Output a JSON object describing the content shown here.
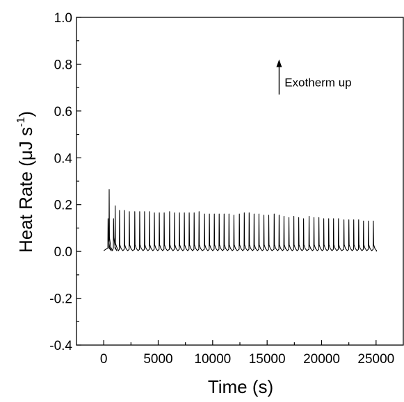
{
  "chart_data": {
    "type": "line",
    "title": "",
    "xlabel": "Time (s)",
    "ylabel_main": "Heat Rate (μJ s",
    "ylabel_sup": "-1",
    "ylabel_close": ")",
    "xlim": [
      -2500,
      27500
    ],
    "ylim": [
      -0.4,
      1.0
    ],
    "x_ticks": [
      0,
      5000,
      10000,
      15000,
      20000,
      25000
    ],
    "x_tick_labels": [
      "0",
      "5000",
      "10000",
      "15000",
      "20000",
      "25000"
    ],
    "y_ticks": [
      -0.4,
      -0.2,
      0.0,
      0.2,
      0.4,
      0.6,
      0.8,
      1.0
    ],
    "y_tick_labels": [
      "-0.4",
      "-0.2",
      "0.0",
      "0.2",
      "0.4",
      "0.6",
      "0.8",
      "1.0"
    ],
    "grid": false,
    "legend": "none",
    "line_color": "#000000",
    "series": [
      {
        "baseline": {
          "start": 0,
          "end": 25000,
          "value": 0.003
        },
        "spikes": [
          {
            "x": 400,
            "y": 0.14
          },
          {
            "x": 500,
            "y": 0.265
          },
          {
            "x": 900,
            "y": 0.14
          },
          {
            "x": 1050,
            "y": 0.195
          },
          {
            "x": 1450,
            "y": 0.175
          },
          {
            "x": 1900,
            "y": 0.175
          },
          {
            "x": 2350,
            "y": 0.17
          },
          {
            "x": 2850,
            "y": 0.17
          },
          {
            "x": 3300,
            "y": 0.17
          },
          {
            "x": 3750,
            "y": 0.17
          },
          {
            "x": 4200,
            "y": 0.17
          },
          {
            "x": 4650,
            "y": 0.165
          },
          {
            "x": 5100,
            "y": 0.165
          },
          {
            "x": 5550,
            "y": 0.165
          },
          {
            "x": 6050,
            "y": 0.17
          },
          {
            "x": 6500,
            "y": 0.165
          },
          {
            "x": 6950,
            "y": 0.165
          },
          {
            "x": 7400,
            "y": 0.165
          },
          {
            "x": 7850,
            "y": 0.165
          },
          {
            "x": 8300,
            "y": 0.165
          },
          {
            "x": 8750,
            "y": 0.17
          },
          {
            "x": 9250,
            "y": 0.16
          },
          {
            "x": 9700,
            "y": 0.16
          },
          {
            "x": 10150,
            "y": 0.16
          },
          {
            "x": 10600,
            "y": 0.16
          },
          {
            "x": 11050,
            "y": 0.16
          },
          {
            "x": 11500,
            "y": 0.16
          },
          {
            "x": 11950,
            "y": 0.155
          },
          {
            "x": 12450,
            "y": 0.16
          },
          {
            "x": 12900,
            "y": 0.165
          },
          {
            "x": 13350,
            "y": 0.165
          },
          {
            "x": 13800,
            "y": 0.16
          },
          {
            "x": 14250,
            "y": 0.16
          },
          {
            "x": 14700,
            "y": 0.155
          },
          {
            "x": 15150,
            "y": 0.155
          },
          {
            "x": 15650,
            "y": 0.16
          },
          {
            "x": 16100,
            "y": 0.155
          },
          {
            "x": 16550,
            "y": 0.15
          },
          {
            "x": 17000,
            "y": 0.145
          },
          {
            "x": 17450,
            "y": 0.15
          },
          {
            "x": 17900,
            "y": 0.145
          },
          {
            "x": 18350,
            "y": 0.14
          },
          {
            "x": 18850,
            "y": 0.15
          },
          {
            "x": 19300,
            "y": 0.145
          },
          {
            "x": 19750,
            "y": 0.145
          },
          {
            "x": 20200,
            "y": 0.14
          },
          {
            "x": 20650,
            "y": 0.14
          },
          {
            "x": 21100,
            "y": 0.14
          },
          {
            "x": 21550,
            "y": 0.14
          },
          {
            "x": 22050,
            "y": 0.135
          },
          {
            "x": 22500,
            "y": 0.135
          },
          {
            "x": 22950,
            "y": 0.135
          },
          {
            "x": 23400,
            "y": 0.135
          },
          {
            "x": 23850,
            "y": 0.13
          },
          {
            "x": 24300,
            "y": 0.13
          },
          {
            "x": 24750,
            "y": 0.13
          }
        ]
      }
    ],
    "annotation": {
      "text": "Exotherm up",
      "arrow_x": 16100,
      "arrow_y_from": 0.67,
      "arrow_y_to": 0.82,
      "text_x": 16600,
      "text_y": 0.705
    }
  }
}
